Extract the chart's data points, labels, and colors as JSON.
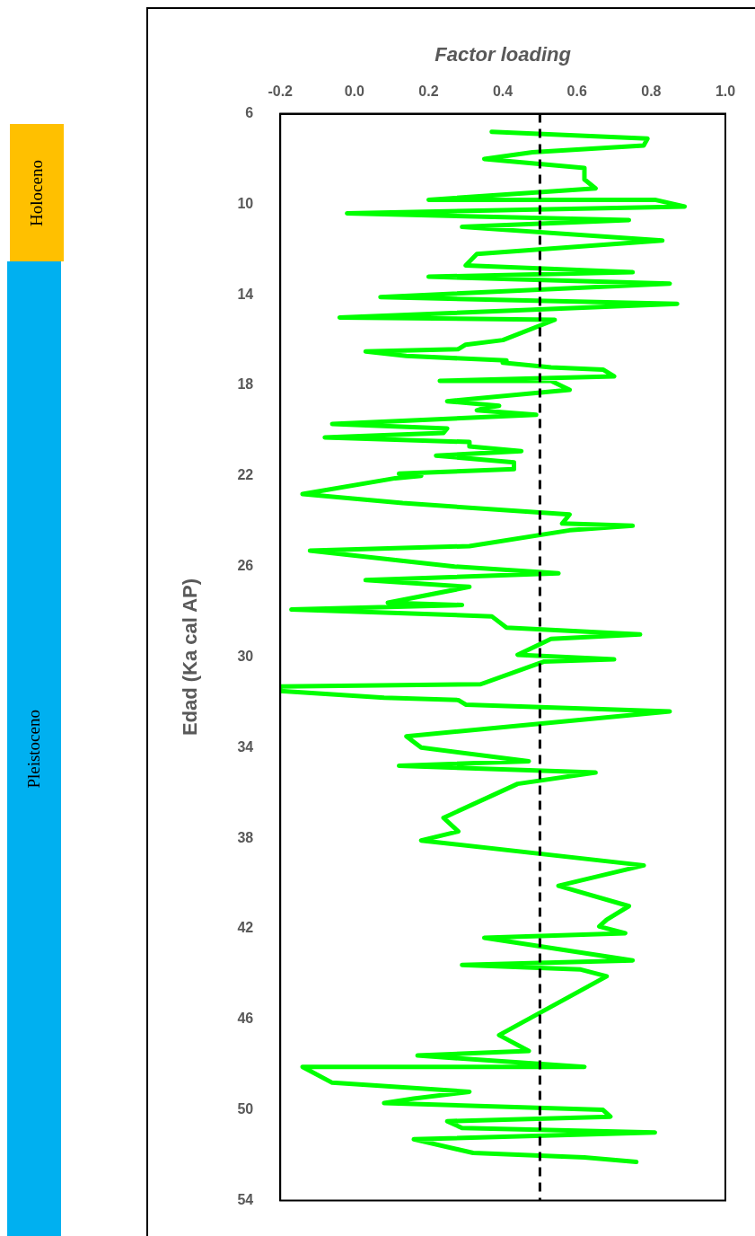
{
  "chart_data": {
    "type": "line",
    "xlabel": "Factor loading",
    "ylabel": "Edad (Ka cal AP)",
    "xlim": [
      -0.2,
      1.0
    ],
    "xticks": [
      -0.2,
      {
        "value": 0,
        "label": "0.0"
      },
      0.2,
      0.4,
      0.6,
      0.8,
      {
        "value": 1,
        "label": "1.0"
      }
    ],
    "ylim": [
      54,
      6
    ],
    "yticks": [
      6,
      10,
      14,
      18,
      22,
      26,
      30,
      34,
      38,
      42,
      46,
      50,
      54
    ],
    "grid": false,
    "legend": false,
    "marker": "none",
    "line_style": "solid",
    "ref_lines": [
      {
        "axis": "x",
        "value": 0.5,
        "color": "#000000",
        "line_style": "dashed"
      }
    ],
    "annotations": [
      "Holoceno",
      "Pleistoceno"
    ],
    "series": [
      {
        "color": "#00ff00",
        "x": [
          0.37,
          0.79,
          0.78,
          0.48,
          0.35,
          0.62,
          0.62,
          0.65,
          0.2,
          0.81,
          0.89,
          -0.02,
          0.74,
          0.29,
          0.83,
          0.33,
          0.3,
          0.75,
          0.2,
          0.85,
          0.07,
          0.87,
          -0.04,
          0.54,
          0.4,
          0.3,
          0.28,
          0.03,
          0.14,
          0.41,
          0.4,
          0.53,
          0.67,
          0.7,
          0.23,
          0.53,
          0.58,
          0.25,
          0.39,
          0.35,
          0.33,
          0.49,
          -0.06,
          0.25,
          0.24,
          -0.08,
          0.31,
          0.31,
          0.45,
          0.22,
          0.43,
          0.43,
          0.12,
          0.18,
          0.11,
          -0.14,
          0.13,
          0.58,
          0.56,
          0.75,
          0.58,
          0.31,
          -0.12,
          0.27,
          0.55,
          0.03,
          0.31,
          0.09,
          0.29,
          -0.17,
          0.37,
          0.41,
          0.77,
          0.53,
          0.44,
          0.7,
          0.51,
          0.34,
          -0.2,
          -0.2,
          0.08,
          0.28,
          0.3,
          0.85,
          0.14,
          0.18,
          0.47,
          0.12,
          0.65,
          0.44,
          0.24,
          0.28,
          0.18,
          0.78,
          0.55,
          0.74,
          0.68,
          0.66,
          0.73,
          0.35,
          0.75,
          0.29,
          0.61,
          0.68,
          0.39,
          0.47,
          0.17,
          0.62,
          -0.14,
          -0.06,
          0.31,
          0.16,
          0.08,
          0.67,
          0.69,
          0.25,
          0.29,
          0.81,
          0.16,
          0.32,
          0.62,
          0.76
        ],
        "values": [
          6.8,
          7.1,
          7.4,
          7.7,
          8.0,
          8.4,
          8.9,
          9.3,
          9.8,
          9.8,
          10.1,
          10.4,
          10.7,
          11.0,
          11.6,
          12.2,
          12.7,
          13.0,
          13.2,
          13.5,
          14.1,
          14.4,
          15.0,
          15.1,
          16.0,
          16.2,
          16.4,
          16.5,
          16.7,
          16.9,
          17.0,
          17.2,
          17.3,
          17.6,
          17.8,
          17.8,
          18.2,
          18.7,
          18.9,
          19.0,
          19.1,
          19.3,
          19.7,
          19.9,
          20.1,
          20.3,
          20.5,
          20.7,
          20.9,
          21.1,
          21.4,
          21.7,
          21.9,
          22.0,
          22.1,
          22.8,
          23.2,
          23.7,
          24.1,
          24.2,
          24.4,
          25.1,
          25.3,
          26.0,
          26.3,
          26.6,
          26.9,
          27.6,
          27.7,
          27.9,
          28.2,
          28.7,
          29.0,
          29.2,
          29.9,
          30.1,
          30.2,
          31.2,
          31.3,
          31.5,
          31.8,
          31.9,
          32.1,
          32.4,
          33.5,
          34.0,
          34.6,
          34.8,
          35.1,
          35.6,
          37.1,
          37.7,
          38.1,
          39.2,
          40.1,
          41.0,
          41.6,
          41.9,
          42.2,
          42.4,
          43.4,
          43.6,
          43.8,
          44.1,
          46.7,
          47.4,
          47.6,
          48.1,
          48.1,
          48.8,
          49.2,
          49.5,
          49.7,
          50.0,
          50.3,
          50.5,
          50.8,
          51.0,
          51.3,
          51.9,
          52.1,
          52.3
        ]
      }
    ]
  }
}
